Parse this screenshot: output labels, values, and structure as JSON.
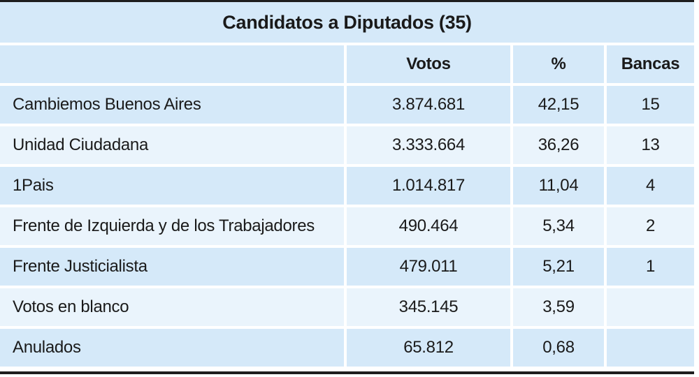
{
  "table": {
    "title": "Candidatos a Diputados (35)",
    "headers": [
      "",
      "Votos",
      "%",
      "Bancas"
    ],
    "rows": [
      {
        "name": "Cambiemos Buenos Aires",
        "votos": "3.874.681",
        "pct": "42,15",
        "bancas": "15"
      },
      {
        "name": "Unidad Ciudadana",
        "votos": "3.333.664",
        "pct": "36,26",
        "bancas": "13"
      },
      {
        "name": "1Pais",
        "votos": "1.014.817",
        "pct": "11,04",
        "bancas": "4"
      },
      {
        "name": "Frente de Izquierda y de los Trabajadores",
        "votos": "490.464",
        "pct": "5,34",
        "bancas": "2"
      },
      {
        "name": "Frente Justicialista",
        "votos": "479.011",
        "pct": "5,21",
        "bancas": "1"
      },
      {
        "name": "Votos en blanco",
        "votos": "345.145",
        "pct": "3,59",
        "bancas": ""
      },
      {
        "name": "Anulados",
        "votos": "65.812",
        "pct": "0,68",
        "bancas": ""
      }
    ]
  },
  "colors": {
    "row_dark": "#d5e9f9",
    "row_light": "#eaf4fc",
    "rule": "#1e1e1e"
  }
}
